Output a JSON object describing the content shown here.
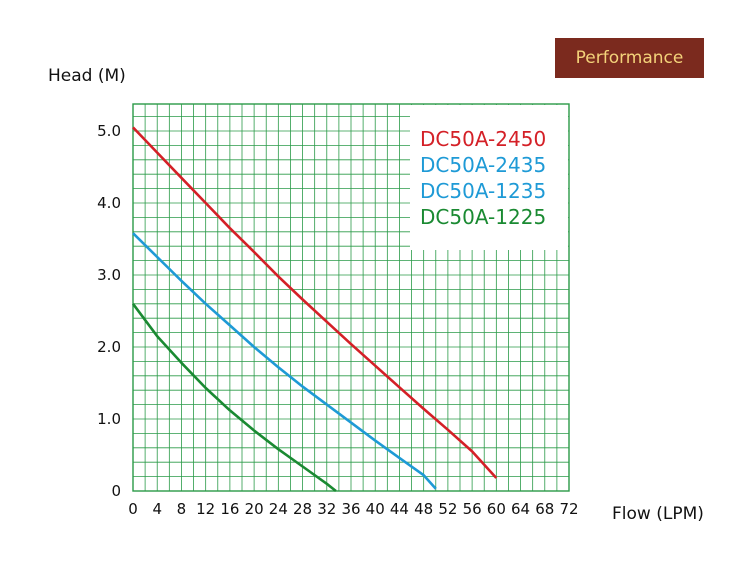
{
  "badge": "Performance",
  "chart_data": {
    "type": "line",
    "title": "",
    "xlabel": "Flow (LPM)",
    "ylabel": "Head (M)",
    "xlim": [
      0,
      72
    ],
    "ylim": [
      0,
      5.4
    ],
    "grid": true,
    "legend_position": "top-right",
    "x_ticks": [
      "0",
      "4",
      "8",
      "12",
      "16",
      "20",
      "24",
      "28",
      "32",
      "36",
      "40",
      "44",
      "48",
      "52",
      "56",
      "60",
      "64",
      "68",
      "72"
    ],
    "y_ticks": [
      {
        "value": 0,
        "label": "0"
      },
      {
        "value": 1,
        "label": "1.0"
      },
      {
        "value": 2,
        "label": "2.0"
      },
      {
        "value": 3,
        "label": "3.0"
      },
      {
        "value": 4,
        "label": "4.0"
      },
      {
        "value": 5,
        "label": "5.0"
      }
    ],
    "series": [
      {
        "name": "DC50A-2450",
        "color": "#d42027",
        "x": [
          0,
          4,
          8,
          12,
          16,
          20,
          24,
          28,
          32,
          36,
          40,
          44,
          48,
          52,
          56,
          60
        ],
        "y": [
          5.05,
          4.7,
          4.35,
          4.0,
          3.65,
          3.32,
          2.98,
          2.66,
          2.35,
          2.04,
          1.74,
          1.44,
          1.14,
          0.85,
          0.55,
          0.18
        ]
      },
      {
        "name": "DC50A-2435",
        "color": "#1e9ad6",
        "x": [
          0,
          4,
          8,
          12,
          16,
          20,
          24,
          28,
          32,
          36,
          40,
          44,
          48,
          50
        ],
        "y": [
          3.58,
          3.25,
          2.92,
          2.6,
          2.3,
          2.0,
          1.72,
          1.45,
          1.2,
          0.95,
          0.7,
          0.46,
          0.22,
          0.03
        ]
      },
      {
        "name": "DC50A-1235",
        "color": "#1e9ad6",
        "x": [],
        "y": []
      },
      {
        "name": "DC50A-1225",
        "color": "#1a8a32",
        "x": [
          0,
          4,
          8,
          12,
          16,
          20,
          24,
          28,
          32,
          33.5
        ],
        "y": [
          2.6,
          2.15,
          1.78,
          1.43,
          1.12,
          0.84,
          0.58,
          0.34,
          0.1,
          0.0
        ]
      }
    ]
  }
}
